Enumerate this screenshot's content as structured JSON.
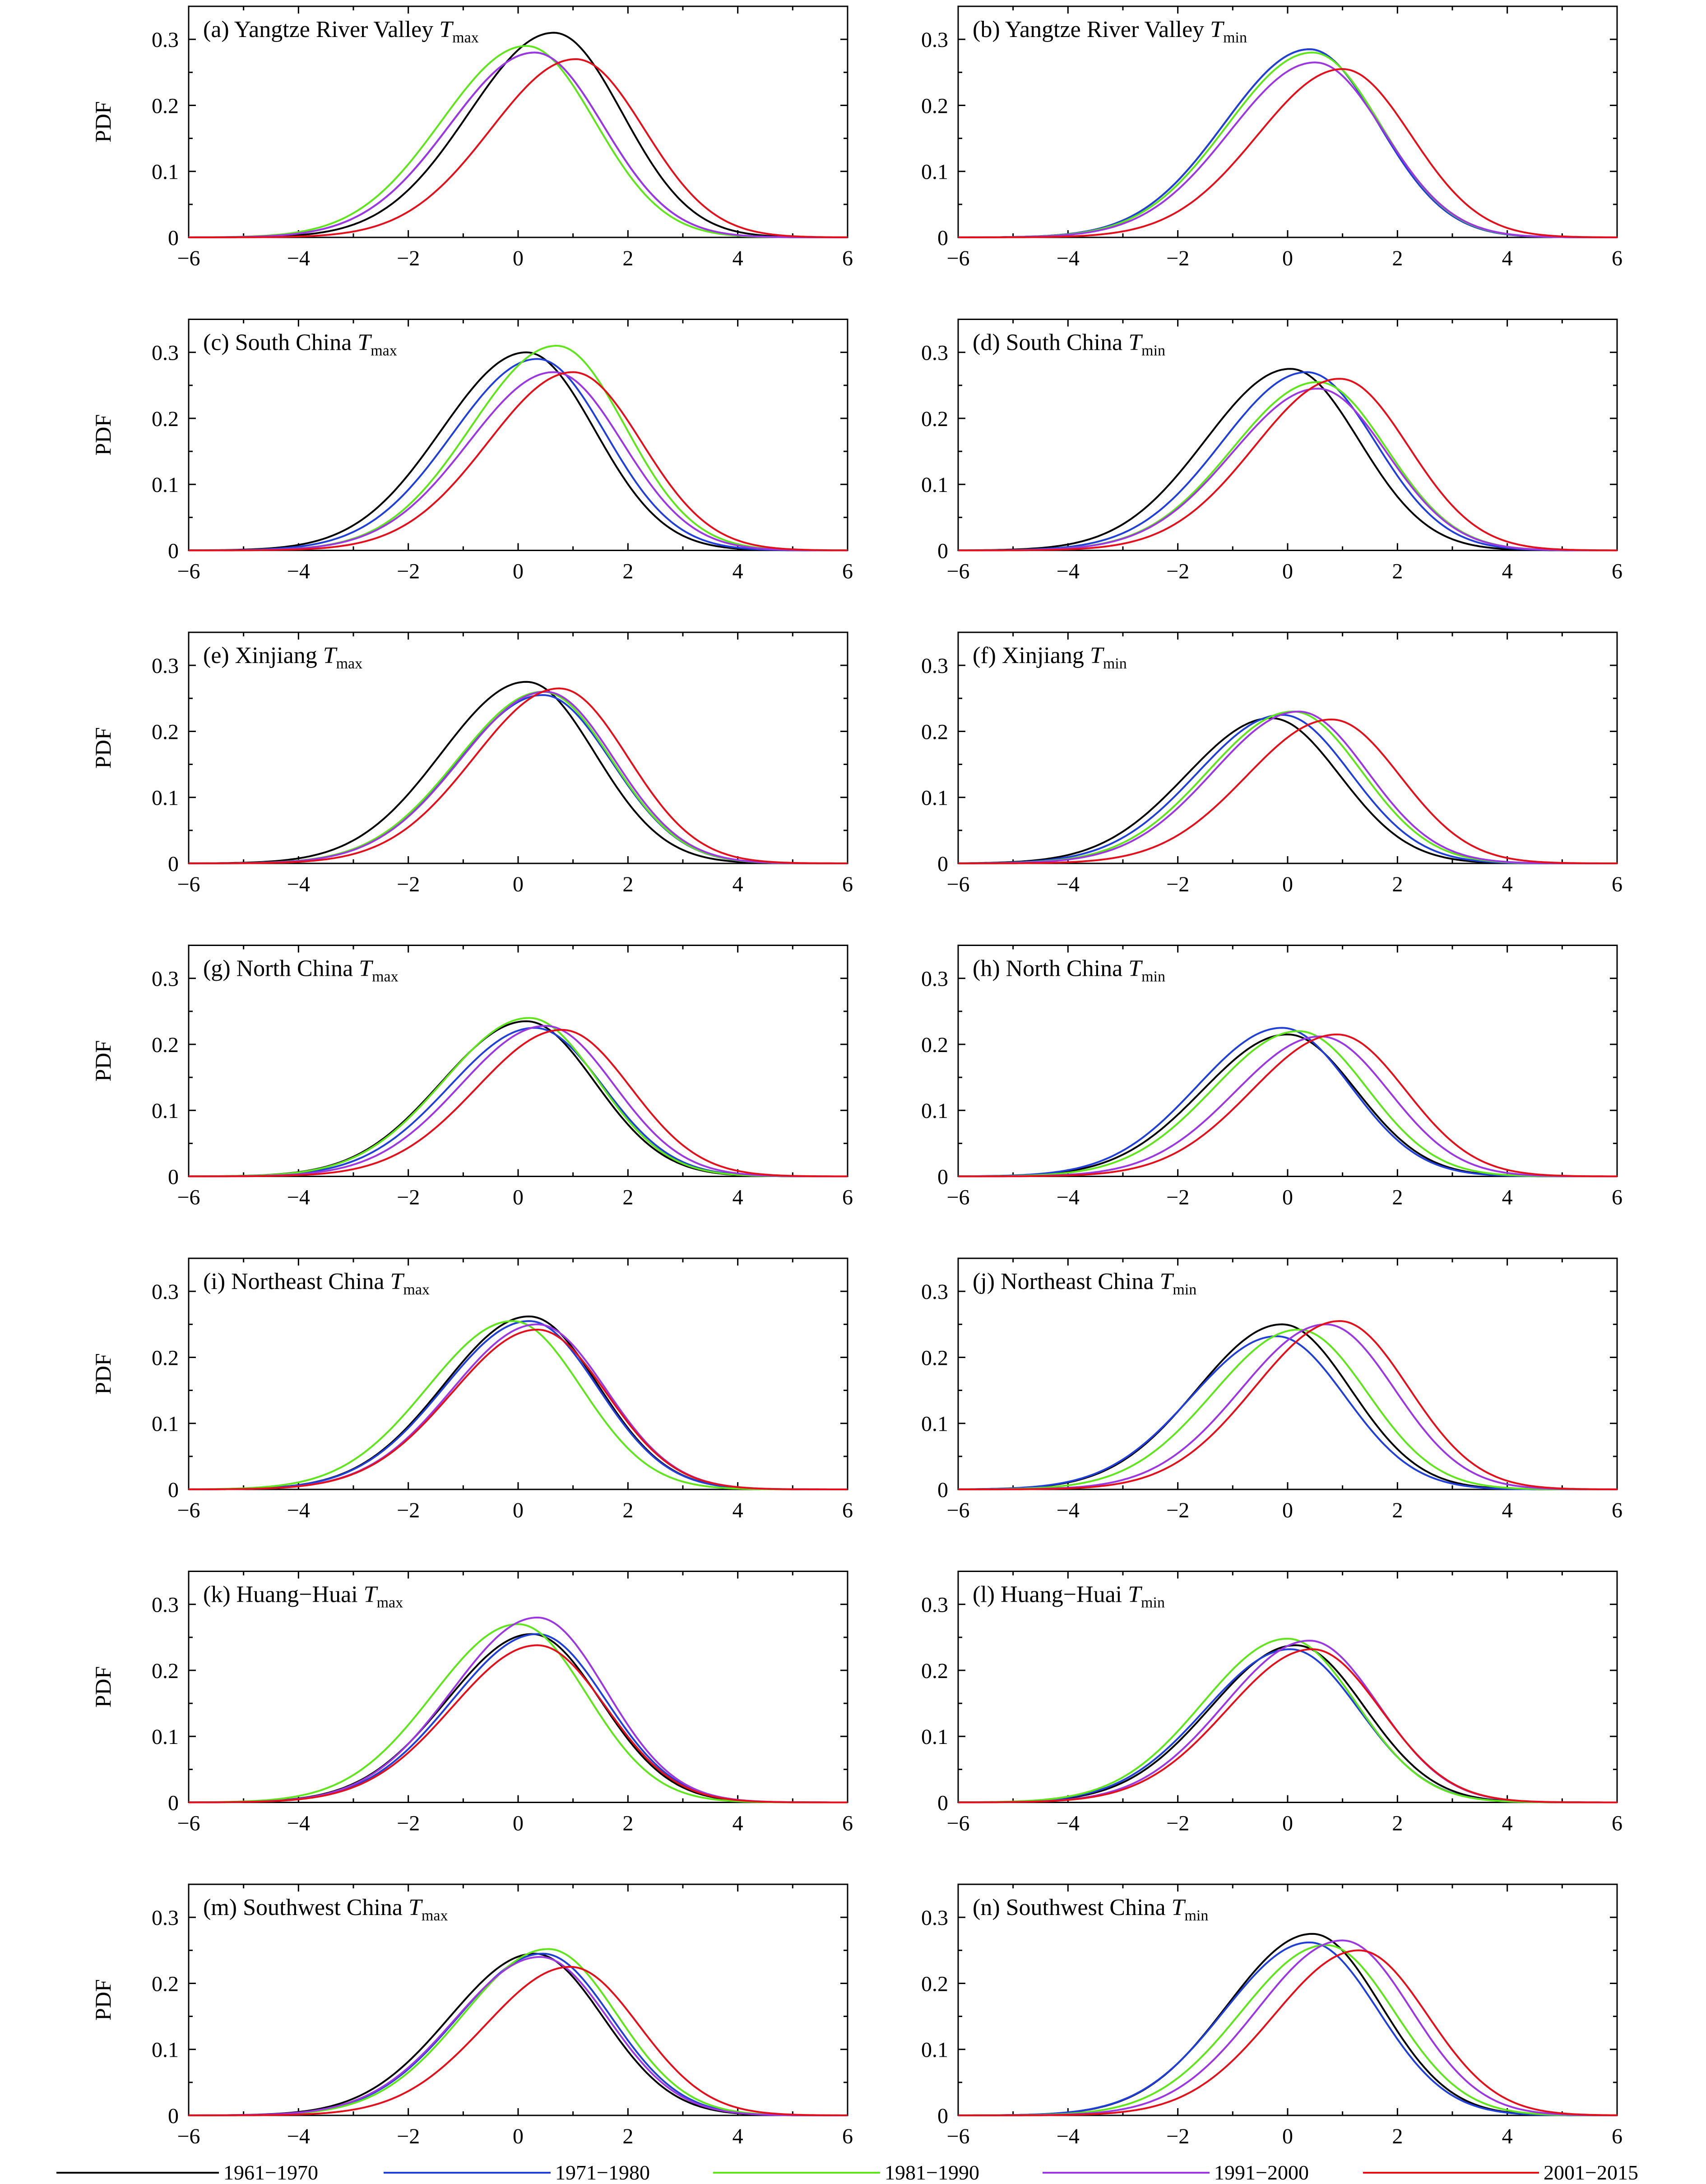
{
  "chart_data": {
    "type": "line",
    "xlim": [
      -6,
      6
    ],
    "ylim": [
      0,
      0.35
    ],
    "xticks": [
      -6,
      -4,
      -2,
      0,
      2,
      4,
      6
    ],
    "yticks": [
      0,
      0.1,
      0.2,
      0.3
    ],
    "ylabel": "PDF",
    "series_names": [
      "1961−1970",
      "1971−1980",
      "1981−1990",
      "1991−2000",
      "2001−2015"
    ],
    "series_colors": [
      "#000000",
      "#1f3fd8",
      "#5ee61b",
      "#9b36e0",
      "#e3101b"
    ],
    "panels": [
      {
        "prefix": "(a) Yangtze River Valley ",
        "var": "T",
        "sub": "max",
        "peaks": [
          0.31,
          0.28,
          0.29,
          0.28,
          0.27
        ],
        "centers": [
          0.65,
          0.3,
          0.15,
          0.3,
          1.05
        ]
      },
      {
        "prefix": "(b) Yangtze River Valley ",
        "var": "T",
        "sub": "min",
        "peaks": [
          0.285,
          0.285,
          0.28,
          0.265,
          0.255
        ],
        "centers": [
          0.4,
          0.4,
          0.45,
          0.5,
          1.0
        ]
      },
      {
        "prefix": "(c) South China ",
        "var": "T",
        "sub": "max",
        "peaks": [
          0.3,
          0.29,
          0.31,
          0.27,
          0.27
        ],
        "centers": [
          0.15,
          0.35,
          0.7,
          0.65,
          1.0
        ]
      },
      {
        "prefix": "(d) South China ",
        "var": "T",
        "sub": "min",
        "peaks": [
          0.275,
          0.27,
          0.255,
          0.245,
          0.26
        ],
        "centers": [
          0.05,
          0.35,
          0.55,
          0.55,
          0.95
        ]
      },
      {
        "prefix": "(e) Xinjiang ",
        "var": "T",
        "sub": "max",
        "peaks": [
          0.275,
          0.255,
          0.26,
          0.26,
          0.265
        ],
        "centers": [
          0.15,
          0.45,
          0.45,
          0.5,
          0.75
        ]
      },
      {
        "prefix": "(f) Xinjiang ",
        "var": "T",
        "sub": "min",
        "peaks": [
          0.22,
          0.225,
          0.23,
          0.23,
          0.218
        ],
        "centers": [
          -0.3,
          -0.1,
          0.1,
          0.2,
          0.8
        ]
      },
      {
        "prefix": "(g) North China ",
        "var": "T",
        "sub": "max",
        "peaks": [
          0.235,
          0.225,
          0.24,
          0.228,
          0.222
        ],
        "centers": [
          0.15,
          0.3,
          0.2,
          0.5,
          0.8
        ]
      },
      {
        "prefix": "(h) North China ",
        "var": "T",
        "sub": "min",
        "peaks": [
          0.215,
          0.225,
          0.22,
          0.212,
          0.215
        ],
        "centers": [
          0.0,
          -0.1,
          0.2,
          0.6,
          0.9
        ]
      },
      {
        "prefix": "(i) Northeast China ",
        "var": "T",
        "sub": "max",
        "peaks": [
          0.262,
          0.255,
          0.255,
          0.25,
          0.242
        ],
        "centers": [
          0.2,
          0.2,
          -0.1,
          0.35,
          0.35
        ]
      },
      {
        "prefix": "(j) Northeast China ",
        "var": "T",
        "sub": "min",
        "peaks": [
          0.25,
          0.232,
          0.242,
          0.25,
          0.255
        ],
        "centers": [
          -0.1,
          -0.2,
          0.2,
          0.7,
          0.95
        ]
      },
      {
        "prefix": "(k) Huang−Huai ",
        "var": "T",
        "sub": "max",
        "peaks": [
          0.255,
          0.255,
          0.27,
          0.28,
          0.238
        ],
        "centers": [
          0.25,
          0.35,
          0.0,
          0.35,
          0.35
        ]
      },
      {
        "prefix": "(l) Huang−Huai ",
        "var": "T",
        "sub": "min",
        "peaks": [
          0.238,
          0.232,
          0.248,
          0.245,
          0.232
        ],
        "centers": [
          0.15,
          0.05,
          0.0,
          0.4,
          0.45
        ]
      },
      {
        "prefix": "(m) Southwest China ",
        "var": "T",
        "sub": "max",
        "peaks": [
          0.245,
          0.245,
          0.252,
          0.24,
          0.225
        ],
        "centers": [
          0.3,
          0.45,
          0.55,
          0.4,
          0.95
        ]
      },
      {
        "prefix": "(n) Southwest China ",
        "var": "T",
        "sub": "min",
        "peaks": [
          0.275,
          0.262,
          0.258,
          0.265,
          0.25
        ],
        "centers": [
          0.45,
          0.4,
          0.7,
          1.0,
          1.3
        ]
      }
    ]
  }
}
